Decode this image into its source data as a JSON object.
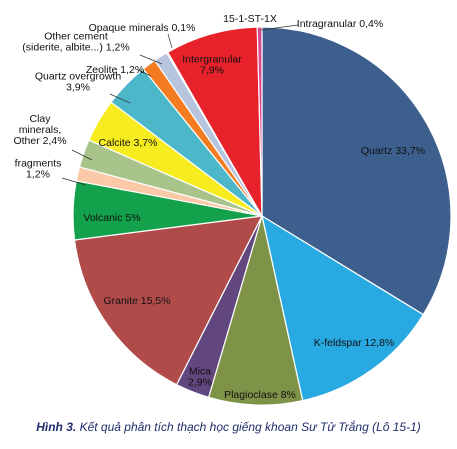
{
  "chart_data": {
    "type": "pie",
    "title": "15-1-ST-1X",
    "slices": [
      {
        "name": "Quartz",
        "label": "Quartz 33,7%",
        "value": 33.7,
        "color": "#3d5f8e"
      },
      {
        "name": "K-feldspar",
        "label": "K-feldspar 12,8%",
        "value": 12.8,
        "color": "#29a9e1"
      },
      {
        "name": "Plagioclase",
        "label": "Plagioclase 8%",
        "value": 8.0,
        "color": "#7e9248"
      },
      {
        "name": "Mica",
        "label": "Mica\n2,9%",
        "value": 2.9,
        "color": "#62477e"
      },
      {
        "name": "Granite",
        "label": "Granite 15,5%",
        "value": 15.5,
        "color": "#b04b4a"
      },
      {
        "name": "Volcanic",
        "label": "Volcanic 5%",
        "value": 5.0,
        "color": "#13a14b"
      },
      {
        "name": "Other fragments",
        "label": "fragments\n1,2%",
        "value": 1.2,
        "color": "#f9c9a8"
      },
      {
        "name": "Clay minerals, Other",
        "label": "Clay\nminerals,\nOther 2,4%",
        "value": 2.4,
        "color": "#a9c48a"
      },
      {
        "name": "Calcite",
        "label": "Calcite 3,7%",
        "value": 3.7,
        "color": "#f6ec1f"
      },
      {
        "name": "Quartz overgrowth",
        "label": "Quartz overgrowth\n3,9%",
        "value": 3.9,
        "color": "#4cb7c8"
      },
      {
        "name": "Zeolite",
        "label": "Zeolite 1,2%",
        "value": 1.2,
        "color": "#f37b21"
      },
      {
        "name": "Other cement",
        "label": "Other cement\n(siderite, albite...) 1,2%",
        "value": 1.2,
        "color": "#b6c4dd"
      },
      {
        "name": "Opaque minerals",
        "label": "Opaque minerals 0,1%",
        "value": 0.1,
        "color": "#1a1a1a"
      },
      {
        "name": "Intergranular",
        "label": "Intergranular\n7,9%",
        "value": 7.9,
        "color": "#e8222b"
      },
      {
        "name": "Intragranular",
        "label": "Intragranular 0,4%",
        "value": 0.4,
        "color": "#d8488e"
      }
    ]
  },
  "caption": {
    "prefix": "Hình 3.",
    "text": "Kết quả phân tích thạch học giếng khoan Sư Tử Trắng (Lô 15-1)"
  }
}
